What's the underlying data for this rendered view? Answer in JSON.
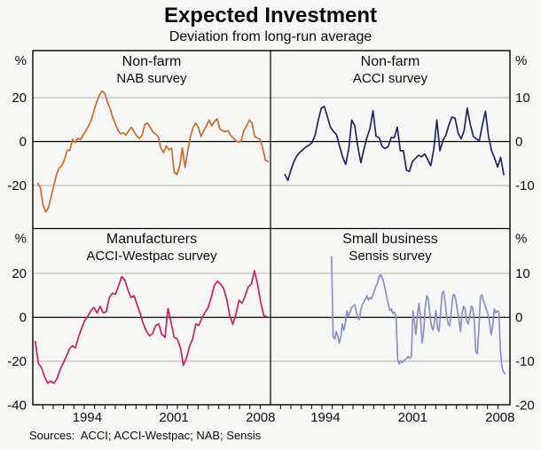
{
  "title": "Expected Investment",
  "subtitle": "Deviation from long-run average",
  "source": "Sources:  ACCI; ACCI-Westpac; NAB; Sensis",
  "colors": {
    "nab_line": "#c96a31",
    "acci_line": "#24245f",
    "acci_westpac_line": "#c42069",
    "sensis_line": "#8c91c3",
    "gridline": "#b0b0b0",
    "axis": "#000000",
    "background": "#f6f6f4"
  },
  "chart_data": {
    "type": "line",
    "layout": "2x2 panels, shared x-axis",
    "x_domain": [
      1989.6,
      2008.8
    ],
    "x_tick_labels": [
      "1994",
      "2001",
      "2008"
    ],
    "x_tick_years": [
      1994,
      2001,
      2008
    ],
    "grid": true,
    "panels": [
      {
        "id": "top-left",
        "title": "Non-farm",
        "subtitle": "NAB survey",
        "axis_side": "left",
        "unit": "%",
        "ylim": [
          -40,
          40
        ],
        "yticks": [
          20,
          0,
          -20
        ],
        "series": {
          "name": "NAB survey",
          "color": "#c96a31",
          "x_start": 1990.0,
          "x_end": 2008.6,
          "values": [
            -19,
            -21,
            -29,
            -32,
            -30,
            -25,
            -20,
            -15,
            -12,
            -11,
            -8,
            -4,
            -4,
            1,
            -0.5,
            1.5,
            1,
            3,
            5,
            7,
            10,
            14,
            18,
            21,
            23,
            22,
            18,
            15,
            11,
            8,
            5,
            3.5,
            4,
            3,
            5,
            6.5,
            4.5,
            2.5,
            1.5,
            3,
            7.8,
            8.4,
            6.4,
            4.4,
            3.4,
            2.3,
            -3,
            -5,
            -2,
            -3.7,
            -3,
            -14,
            -15,
            -11,
            -3,
            -11.8,
            -4.4,
            2.3,
            6.4,
            8.4,
            6.4,
            2.3,
            5,
            7.1,
            9.8,
            7.1,
            9.1,
            10.4,
            5.7,
            5,
            4.4,
            5,
            3,
            1.7,
            0.3,
            -0.3,
            0.3,
            5,
            7.1,
            9.8,
            8.4,
            2.3,
            1.7,
            1,
            -3,
            -8.4,
            -9.1
          ]
        }
      },
      {
        "id": "top-right",
        "title": "Non-farm",
        "subtitle": "ACCI survey",
        "axis_side": "right",
        "unit": "%",
        "ylim": [
          -20,
          20
        ],
        "yticks": [
          10,
          0,
          -10
        ],
        "series": {
          "name": "ACCI survey",
          "color": "#24245f",
          "x_start": 1990.75,
          "x_end": 2008.3,
          "values": [
            -7.5,
            -8.8,
            -6.5,
            -4.5,
            -3.2,
            -2.4,
            -1.8,
            -1.2,
            -0.8,
            -0.2,
            1.5,
            4.9,
            7.6,
            8,
            5.6,
            3.3,
            2.3,
            1.6,
            -1.1,
            -3.5,
            -5.2,
            -1.8,
            4.9,
            3.6,
            -1.1,
            -4.8,
            -1.8,
            0.9,
            2.9,
            7,
            1.2,
            0.9,
            -1.1,
            -1.6,
            -1.1,
            0.9,
            0.9,
            3.3,
            -2.1,
            -2.1,
            -6.5,
            -6.8,
            -4.5,
            -3.8,
            -3.1,
            -3.5,
            -2.8,
            -4.1,
            -5.5,
            -1.8,
            4.9,
            -2.1,
            0.2,
            1.5,
            3.9,
            5.6,
            5.3,
            1.9,
            0.6,
            2.6,
            7.6,
            3.9,
            1.2,
            0.6,
            0.2,
            3.9,
            6.9,
            1.2,
            -2.1,
            -3.8,
            -5.8,
            -3.6,
            -7.5
          ]
        }
      },
      {
        "id": "bottom-left",
        "title": "Manufacturers",
        "subtitle": "ACCI-Westpac survey",
        "axis_side": "left",
        "unit": "%",
        "ylim": [
          -40,
          40
        ],
        "yticks": [
          20,
          0,
          -20,
          -40
        ],
        "series": {
          "name": "ACCI-Westpac survey",
          "color": "#c42069",
          "x_start": 1989.8,
          "x_end": 2008.5,
          "values": [
            -11,
            -21,
            -23,
            -27,
            -30,
            -29,
            -30,
            -28,
            -24,
            -21,
            -18,
            -14.5,
            -13,
            -14,
            -9,
            -5,
            -1.5,
            0.5,
            3,
            4.5,
            2,
            5,
            2,
            2.5,
            9,
            11,
            10.5,
            14.5,
            18.5,
            17,
            12.5,
            9,
            9.8,
            5.7,
            1.7,
            -3,
            -6.4,
            -8.4,
            -7.5,
            -3.7,
            -3,
            -7.8,
            -9.1,
            4,
            -2.3,
            -9.1,
            -9.8,
            -13.8,
            -21.9,
            -18.5,
            -13.1,
            -9.8,
            -3,
            -3.7,
            -0.3,
            2.3,
            4.4,
            9.1,
            14.5,
            16.5,
            15.1,
            13.1,
            8.4,
            0.9,
            -3.2,
            1.5,
            7.7,
            6.4,
            9.8,
            13.8,
            15.1,
            21.2,
            15.1,
            7,
            0.9,
            0.3
          ]
        }
      },
      {
        "id": "bottom-right",
        "title": "Small business",
        "subtitle": "Sensis survey",
        "axis_side": "right",
        "unit": "%",
        "ylim": [
          -20,
          20
        ],
        "yticks": [
          10,
          0,
          -10,
          -20
        ],
        "series": {
          "name": "Sensis survey",
          "color": "#8c91c3",
          "x_start": 1994.5,
          "x_end": 2008.4,
          "values": [
            13.8,
            -4.5,
            -4.9,
            -3.2,
            -4.2,
            -5.9,
            -4.5,
            -1.5,
            -2.9,
            -1.2,
            1.5,
            0.2,
            1.2,
            2.2,
            2.5,
            2.9,
            1.5,
            -0.2,
            -0.5,
            1.5,
            2.9,
            3.5,
            4.2,
            4.9,
            3.9,
            4.5,
            4.2,
            5.2,
            6.2,
            7.2,
            7.9,
            9.3,
            9.7,
            8.9,
            7.9,
            6.2,
            4.5,
            2.9,
            1.5,
            1.9,
            0.8,
            1.2,
            0.2,
            -9.3,
            -10.6,
            -9.9,
            -10.3,
            -9.9,
            -9.6,
            -9.3,
            -8.9,
            -9.3,
            -8.9,
            1.5,
            -1.2,
            -3.9,
            0.8,
            3.2,
            -0.5,
            -5.9,
            -3.2,
            2.2,
            4.9,
            4.2,
            0.8,
            -1.9,
            -2.9,
            -1.2,
            1.5,
            -2.5,
            -3.2,
            0.8,
            5.5,
            5.9,
            3.5,
            0.2,
            -1.5,
            -1.9,
            1.2,
            4.9,
            5.2,
            3.9,
            1.5,
            -0.5,
            -3.2,
            0.8,
            2.5,
            1.9,
            -0.8,
            -1.5,
            0.2,
            2.5,
            2.2,
            -0.8,
            -7.9,
            -8.2,
            -2.5,
            4.7,
            5.1,
            3.7,
            2.7,
            1.7,
            0.7,
            -1.3,
            -4,
            -2,
            1.9,
            1,
            1.5,
            1.2,
            -7.4,
            -11.1,
            -12.4,
            -12.8
          ]
        }
      }
    ]
  }
}
